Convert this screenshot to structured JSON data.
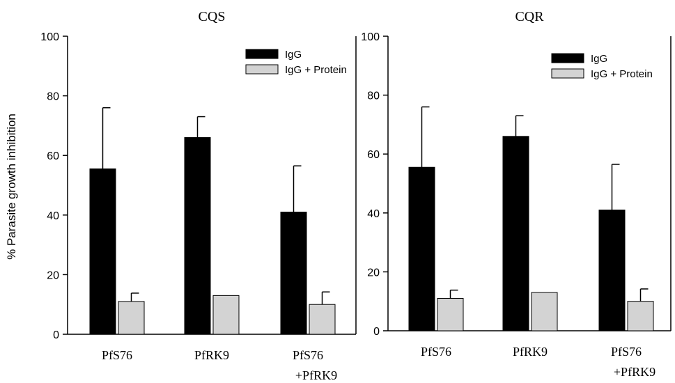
{
  "figure": {
    "ylabel": "% Parasite growth inhibition"
  },
  "chart_data": [
    {
      "type": "bar",
      "title": "CQS",
      "xlabel": "",
      "ylabel": "% Parasite growth inhibition",
      "ylim": [
        0,
        100
      ],
      "yticks": [
        0,
        20,
        40,
        60,
        80,
        100
      ],
      "categories": [
        [
          "PfS76"
        ],
        [
          "PfRK9"
        ],
        [
          "PfS76",
          "+PfRK9"
        ]
      ],
      "series": [
        {
          "name": "IgG",
          "color": "#000000",
          "values": [
            55.5,
            66,
            41
          ],
          "error_upper": [
            76,
            73,
            56.5
          ]
        },
        {
          "name": "IgG + Protein",
          "color": "#d3d3d3",
          "values": [
            11,
            13,
            10
          ],
          "error_upper": [
            13.8,
            null,
            14.2
          ]
        }
      ],
      "legend": "top-right",
      "grid": false
    },
    {
      "type": "bar",
      "title": "CQR",
      "xlabel": "",
      "ylabel": "",
      "ylim": [
        0,
        100
      ],
      "yticks": [
        0,
        20,
        40,
        60,
        80,
        100
      ],
      "categories": [
        [
          "PfS76"
        ],
        [
          "PfRK9"
        ],
        [
          "PfS76",
          "+PfRK9"
        ]
      ],
      "series": [
        {
          "name": "IgG",
          "color": "#000000",
          "values": [
            55.5,
            66,
            41
          ],
          "error_upper": [
            76,
            73,
            56.5
          ]
        },
        {
          "name": "IgG + Protein",
          "color": "#d3d3d3",
          "values": [
            11,
            13,
            10
          ],
          "error_upper": [
            13.8,
            null,
            14.2
          ]
        }
      ],
      "legend": "top-right",
      "grid": false
    }
  ]
}
